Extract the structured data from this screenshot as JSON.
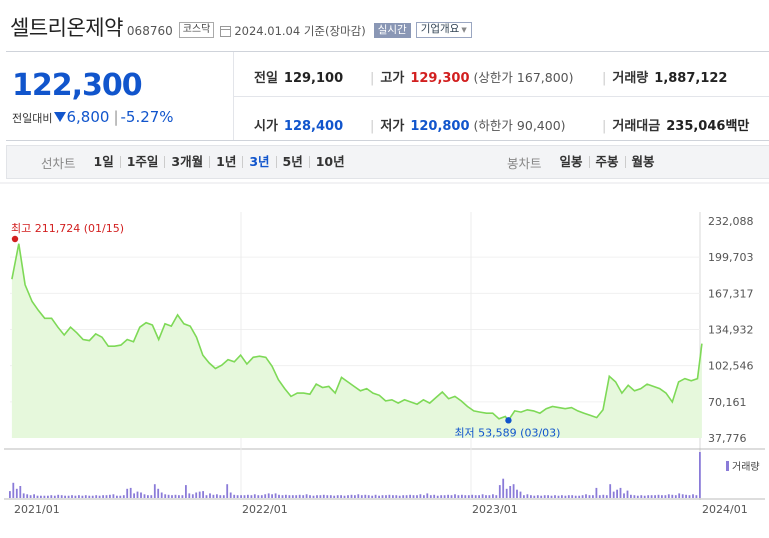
{
  "header": {
    "stock_name": "셀트리온제약",
    "stock_code": "068760",
    "market": "코스닥",
    "date_text": "2024.01.04 기준(장마감)",
    "realtime_label": "실시간",
    "company_info_label": "기업개요"
  },
  "quote": {
    "current_price": "122,300",
    "change_label": "전일대비",
    "change_value": "6,800",
    "change_percent": "-5.27%",
    "prev_close_label": "전일",
    "prev_close": "129,100",
    "high_label": "고가",
    "high": "129,300",
    "upper_limit_label": "상한가",
    "upper_limit": "167,800",
    "volume_label": "거래량",
    "volume": "1,887,122",
    "open_label": "시가",
    "open": "128,400",
    "low_label": "저가",
    "low": "120,800",
    "lower_limit_label": "하한가",
    "lower_limit": "90,400",
    "trade_value_label": "거래대금",
    "trade_value": "235,046",
    "trade_value_unit": "백만"
  },
  "periods": {
    "line_label": "선차트",
    "line_items": [
      "1일",
      "1주일",
      "3개월",
      "1년",
      "3년",
      "5년",
      "10년"
    ],
    "active": "3년",
    "candle_label": "봉차트",
    "candle_items": [
      "일봉",
      "주봉",
      "월봉"
    ]
  },
  "colors": {
    "up": "#d21f1f",
    "down": "#1155cc",
    "line": "#7ed957",
    "fill": "#e6f8dc",
    "volume": "#8a7bd8"
  },
  "chart_data": {
    "type": "area",
    "y_ticks": [
      "232,088",
      "199,703",
      "167,317",
      "134,932",
      "102,546",
      "70,161",
      "37,776"
    ],
    "ylim": [
      37776,
      232088
    ],
    "x_ticks": [
      "2021/01",
      "2022/01",
      "2023/01",
      "2024/01"
    ],
    "x_range": [
      "2021/01",
      "2024/01"
    ],
    "high_annotation": "최고 211,724 (01/15)",
    "high_value": 211724,
    "high_date": "2021/01/15",
    "low_annotation": "최저 53,589 (03/03)",
    "low_value": 53589,
    "low_date": "2023/03/03",
    "volume_legend": "거래량",
    "series": [
      {
        "points": [
          [
            "2021-01-04",
            180000
          ],
          [
            "2021-01-15",
            211724
          ],
          [
            "2021-01-25",
            175000
          ],
          [
            "2021-02-05",
            160000
          ],
          [
            "2021-02-15",
            152000
          ],
          [
            "2021-02-25",
            145000
          ],
          [
            "2021-03-08",
            145000
          ],
          [
            "2021-03-18",
            137000
          ],
          [
            "2021-03-28",
            130000
          ],
          [
            "2021-04-07",
            137000
          ],
          [
            "2021-04-17",
            132000
          ],
          [
            "2021-04-27",
            126000
          ],
          [
            "2021-05-07",
            125000
          ],
          [
            "2021-05-17",
            131000
          ],
          [
            "2021-05-27",
            128000
          ],
          [
            "2021-06-06",
            120000
          ],
          [
            "2021-06-16",
            120000
          ],
          [
            "2021-06-26",
            121000
          ],
          [
            "2021-07-06",
            126000
          ],
          [
            "2021-07-16",
            124000
          ],
          [
            "2021-07-26",
            137000
          ],
          [
            "2021-08-05",
            141000
          ],
          [
            "2021-08-15",
            139000
          ],
          [
            "2021-08-25",
            126000
          ],
          [
            "2021-09-04",
            140000
          ],
          [
            "2021-09-14",
            138000
          ],
          [
            "2021-09-24",
            148000
          ],
          [
            "2021-10-04",
            140000
          ],
          [
            "2021-10-14",
            138000
          ],
          [
            "2021-10-24",
            128000
          ],
          [
            "2021-11-03",
            112000
          ],
          [
            "2021-11-13",
            105000
          ],
          [
            "2021-11-23",
            100000
          ],
          [
            "2021-12-03",
            103000
          ],
          [
            "2021-12-13",
            108000
          ],
          [
            "2021-12-23",
            106000
          ],
          [
            "2022-01-02",
            112000
          ],
          [
            "2022-01-12",
            104000
          ],
          [
            "2022-01-22",
            110000
          ],
          [
            "2022-02-01",
            111000
          ],
          [
            "2022-02-11",
            110000
          ],
          [
            "2022-02-21",
            102000
          ],
          [
            "2022-03-03",
            90000
          ],
          [
            "2022-03-13",
            82000
          ],
          [
            "2022-03-23",
            75000
          ],
          [
            "2022-04-02",
            78000
          ],
          [
            "2022-04-12",
            78000
          ],
          [
            "2022-04-22",
            77000
          ],
          [
            "2022-05-02",
            86000
          ],
          [
            "2022-05-12",
            83000
          ],
          [
            "2022-05-22",
            84000
          ],
          [
            "2022-06-01",
            78000
          ],
          [
            "2022-06-11",
            92000
          ],
          [
            "2022-06-21",
            88000
          ],
          [
            "2022-07-01",
            84000
          ],
          [
            "2022-07-11",
            80000
          ],
          [
            "2022-07-21",
            82000
          ],
          [
            "2022-07-31",
            78000
          ],
          [
            "2022-08-10",
            76000
          ],
          [
            "2022-08-20",
            71000
          ],
          [
            "2022-08-30",
            72000
          ],
          [
            "2022-09-09",
            69000
          ],
          [
            "2022-09-19",
            72000
          ],
          [
            "2022-09-29",
            70000
          ],
          [
            "2022-10-09",
            68000
          ],
          [
            "2022-10-19",
            72000
          ],
          [
            "2022-10-29",
            69000
          ],
          [
            "2022-11-08",
            74000
          ],
          [
            "2022-11-18",
            79000
          ],
          [
            "2022-11-28",
            73000
          ],
          [
            "2022-12-08",
            75000
          ],
          [
            "2022-12-18",
            71000
          ],
          [
            "2022-12-28",
            66000
          ],
          [
            "2023-01-07",
            62000
          ],
          [
            "2023-01-17",
            61000
          ],
          [
            "2023-01-27",
            60000
          ],
          [
            "2023-02-06",
            60000
          ],
          [
            "2023-02-16",
            55000
          ],
          [
            "2023-02-26",
            57000
          ],
          [
            "2023-03-03",
            53589
          ],
          [
            "2023-03-13",
            62000
          ],
          [
            "2023-03-23",
            61000
          ],
          [
            "2023-04-02",
            63000
          ],
          [
            "2023-04-12",
            62000
          ],
          [
            "2023-04-22",
            60000
          ],
          [
            "2023-05-02",
            64000
          ],
          [
            "2023-05-12",
            66000
          ],
          [
            "2023-05-22",
            65000
          ],
          [
            "2023-06-01",
            64000
          ],
          [
            "2023-06-11",
            65000
          ],
          [
            "2023-06-21",
            62000
          ],
          [
            "2023-07-01",
            60000
          ],
          [
            "2023-07-11",
            58000
          ],
          [
            "2023-07-21",
            56000
          ],
          [
            "2023-07-31",
            63000
          ],
          [
            "2023-08-10",
            93000
          ],
          [
            "2023-08-20",
            88000
          ],
          [
            "2023-08-30",
            78000
          ],
          [
            "2023-09-09",
            85000
          ],
          [
            "2023-09-19",
            80000
          ],
          [
            "2023-09-29",
            82000
          ],
          [
            "2023-10-09",
            86000
          ],
          [
            "2023-10-19",
            84000
          ],
          [
            "2023-10-29",
            82000
          ],
          [
            "2023-11-08",
            78000
          ],
          [
            "2023-11-18",
            70000
          ],
          [
            "2023-11-28",
            88000
          ],
          [
            "2023-12-08",
            91000
          ],
          [
            "2023-12-18",
            89000
          ],
          [
            "2023-12-28",
            91000
          ],
          [
            "2024-01-04",
            122300
          ]
        ]
      }
    ],
    "volume": {
      "relative_bars": [
        0.15,
        0.33,
        0.2,
        0.26,
        0.1,
        0.08,
        0.06,
        0.08,
        0.05,
        0.05,
        0.05,
        0.05,
        0.06,
        0.05,
        0.07,
        0.06,
        0.05,
        0.05,
        0.06,
        0.05,
        0.06,
        0.05,
        0.06,
        0.05,
        0.05,
        0.06,
        0.05,
        0.06,
        0.06,
        0.07,
        0.08,
        0.05,
        0.05,
        0.06,
        0.2,
        0.22,
        0.1,
        0.14,
        0.12,
        0.08,
        0.06,
        0.06,
        0.3,
        0.2,
        0.12,
        0.08,
        0.07,
        0.06,
        0.07,
        0.06,
        0.06,
        0.28,
        0.1,
        0.08,
        0.12,
        0.14,
        0.15,
        0.06,
        0.1,
        0.07,
        0.08,
        0.06,
        0.06,
        0.3,
        0.12,
        0.07,
        0.06,
        0.06,
        0.06,
        0.07,
        0.06,
        0.08,
        0.06,
        0.06,
        0.08,
        0.1,
        0.08,
        0.1,
        0.07,
        0.06,
        0.07,
        0.06,
        0.06,
        0.06,
        0.07,
        0.06,
        0.08,
        0.06,
        0.05,
        0.06,
        0.06,
        0.07,
        0.06,
        0.06,
        0.05,
        0.06,
        0.06,
        0.05,
        0.06,
        0.07,
        0.06,
        0.08,
        0.06,
        0.07,
        0.06,
        0.05,
        0.07,
        0.05,
        0.06,
        0.06,
        0.07,
        0.06,
        0.06,
        0.05,
        0.06,
        0.06,
        0.07,
        0.06,
        0.06,
        0.08,
        0.06,
        0.1,
        0.06,
        0.07,
        0.05,
        0.06,
        0.06,
        0.07,
        0.06,
        0.08,
        0.06,
        0.07,
        0.06,
        0.06,
        0.07,
        0.06,
        0.06,
        0.08,
        0.06,
        0.06,
        0.08,
        0.06,
        0.28,
        0.42,
        0.2,
        0.26,
        0.3,
        0.18,
        0.14,
        0.06,
        0.08,
        0.06,
        0.05,
        0.06,
        0.05,
        0.06,
        0.06,
        0.05,
        0.06,
        0.05,
        0.06,
        0.05,
        0.06,
        0.06,
        0.05,
        0.05,
        0.06,
        0.08,
        0.06,
        0.06,
        0.22,
        0.06,
        0.07,
        0.06,
        0.3,
        0.14,
        0.18,
        0.22,
        0.1,
        0.16,
        0.07,
        0.06,
        0.05,
        0.06,
        0.05,
        0.06,
        0.06,
        0.06,
        0.07,
        0.06,
        0.06,
        0.08,
        0.07,
        0.06,
        0.1,
        0.08,
        0.07,
        0.06,
        0.08,
        0.06,
        1.0
      ]
    }
  }
}
